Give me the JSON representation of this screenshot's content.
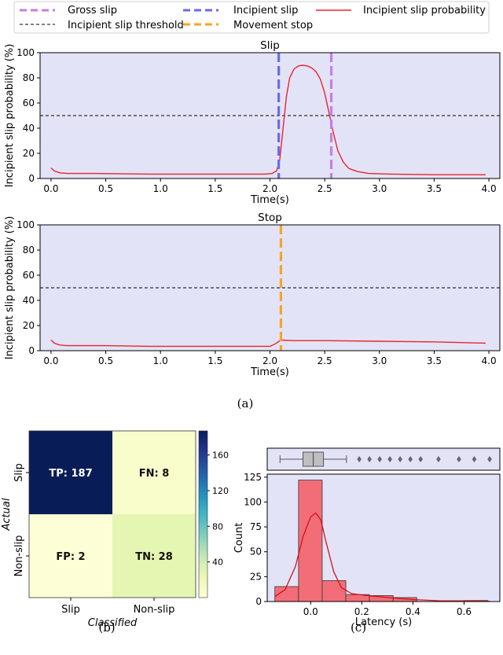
{
  "legend": {
    "items": [
      {
        "label": "Gross slip",
        "color": "#c77ee0",
        "style": "dashed-thick"
      },
      {
        "label": "Incipient slip",
        "color": "#6a6af0",
        "style": "dashed-thick"
      },
      {
        "label": "Incipient slip probability",
        "color": "#e8262b",
        "style": "solid"
      },
      {
        "label": "Incipient slip threshold",
        "color": "#000000",
        "style": "dashed-thin"
      },
      {
        "label": "Movement stop",
        "color": "#f5a623",
        "style": "dashed-thick"
      }
    ]
  },
  "captions": {
    "a": "(a)",
    "b": "(b)",
    "c": "(c)"
  },
  "colors": {
    "plot_bg": "#e3e3f7",
    "prob_line": "#e8262b",
    "gross": "#c77ee0",
    "incipient": "#6a6af0",
    "stop": "#f5a623",
    "hist": "#f26d77",
    "hist_edge": "#b8232e"
  },
  "chart_data": [
    {
      "type": "line",
      "title": "Slip",
      "xlabel": "Time(s)",
      "ylabel": "Incipient slip probability (%)",
      "xlim": [
        -0.1,
        4.1
      ],
      "ylim": [
        0,
        100
      ],
      "xticks": [
        "0.0",
        "0.5",
        "1.0",
        "1.5",
        "2.0",
        "2.5",
        "3.0",
        "3.5",
        "4.0"
      ],
      "yticks": [
        "0",
        "20",
        "40",
        "60",
        "80",
        "100"
      ],
      "threshold": 50,
      "events": [
        {
          "type": "incipient",
          "x": 2.08
        },
        {
          "type": "gross",
          "x": 2.56
        }
      ],
      "series": [
        {
          "x": [
            0,
            0.03,
            0.08,
            0.15,
            0.4,
            0.9,
            1.0,
            1.5,
            1.95,
            2.02,
            2.06,
            2.09,
            2.12,
            2.15,
            2.18,
            2.22,
            2.26,
            2.3,
            2.34,
            2.38,
            2.42,
            2.46,
            2.5,
            2.54,
            2.58,
            2.62,
            2.67,
            2.72,
            2.8,
            2.9,
            3.1,
            3.5,
            3.97
          ],
          "y": [
            8.5,
            6,
            4.5,
            4,
            4,
            3.5,
            3.5,
            3.5,
            3.5,
            4,
            6,
            15,
            40,
            65,
            80,
            87,
            89.5,
            90,
            89.5,
            88,
            85,
            79,
            68,
            52,
            36,
            22,
            13,
            8,
            5.5,
            4,
            3.5,
            3,
            3
          ]
        }
      ]
    },
    {
      "type": "line",
      "title": "Stop",
      "xlabel": "Time(s)",
      "ylabel": "Incipient slip probability (%)",
      "xlim": [
        -0.1,
        4.1
      ],
      "ylim": [
        0,
        100
      ],
      "xticks": [
        "0.0",
        "0.5",
        "1.0",
        "1.5",
        "2.0",
        "2.5",
        "3.0",
        "3.5",
        "4.0"
      ],
      "yticks": [
        "0",
        "20",
        "40",
        "60",
        "80",
        "100"
      ],
      "threshold": 50,
      "events": [
        {
          "type": "stop",
          "x": 2.1
        }
      ],
      "series": [
        {
          "x": [
            0,
            0.03,
            0.08,
            0.15,
            0.5,
            0.9,
            1.5,
            2.0,
            2.05,
            2.1,
            2.2,
            2.5,
            3.0,
            3.5,
            3.97
          ],
          "y": [
            8.5,
            6,
            4.5,
            4,
            4,
            3.5,
            3.5,
            3.5,
            5.5,
            8.5,
            8,
            8,
            7.5,
            7,
            6
          ]
        }
      ]
    },
    {
      "type": "heatmap",
      "xlabel": "Classified",
      "ylabel": "Actual",
      "x_categories": [
        "Slip",
        "Non-slip"
      ],
      "y_categories": [
        "Slip",
        "Non-slip"
      ],
      "cells": [
        [
          {
            "label": "TP: 187",
            "value": 187
          },
          {
            "label": "FN: 8",
            "value": 8
          }
        ],
        [
          {
            "label": "FP: 2",
            "value": 2
          },
          {
            "label": "TN: 28",
            "value": 28
          }
        ]
      ],
      "colorbar": {
        "min": 0,
        "max": 187,
        "ticks": [
          "40",
          "80",
          "120",
          "160"
        ],
        "tick_values": [
          40,
          80,
          120,
          160
        ]
      }
    },
    {
      "type": "bar",
      "subtype": "histogram-with-boxplot",
      "xlabel": "Latency (s)",
      "ylabel": "Count",
      "xlim": [
        -0.17,
        0.74
      ],
      "ylim": [
        0,
        128
      ],
      "xticks": [
        "0.0",
        "0.2",
        "0.4",
        "0.6"
      ],
      "yticks": [
        "0",
        "25",
        "50",
        "75",
        "100",
        "125"
      ],
      "bins": [
        {
          "x0": -0.14,
          "x1": -0.0475,
          "count": 15
        },
        {
          "x0": -0.0475,
          "x1": 0.045,
          "count": 122
        },
        {
          "x0": 0.045,
          "x1": 0.1375,
          "count": 21
        },
        {
          "x0": 0.1375,
          "x1": 0.23,
          "count": 7
        },
        {
          "x0": 0.23,
          "x1": 0.3225,
          "count": 6
        },
        {
          "x0": 0.3225,
          "x1": 0.415,
          "count": 4
        },
        {
          "x0": 0.415,
          "x1": 0.5075,
          "count": 0
        },
        {
          "x0": 0.5075,
          "x1": 0.6,
          "count": 0
        },
        {
          "x0": 0.6,
          "x1": 0.6925,
          "count": 1
        }
      ],
      "kde": {
        "x": [
          -0.14,
          -0.1,
          -0.06,
          -0.03,
          0.0,
          0.02,
          0.04,
          0.06,
          0.09,
          0.12,
          0.16,
          0.22,
          0.3,
          0.4,
          0.5,
          0.6,
          0.7
        ],
        "y": [
          5,
          12,
          35,
          65,
          85,
          89,
          82,
          60,
          30,
          14,
          8,
          6,
          4,
          2,
          0.8,
          0.6,
          0.2
        ]
      },
      "boxplot": {
        "whisker_low": -0.12,
        "q1": -0.03,
        "median": 0.01,
        "q3": 0.05,
        "whisker_high": 0.14,
        "outliers": [
          0.19,
          0.23,
          0.27,
          0.31,
          0.35,
          0.39,
          0.43,
          0.5,
          0.58,
          0.64,
          0.7
        ]
      }
    }
  ]
}
